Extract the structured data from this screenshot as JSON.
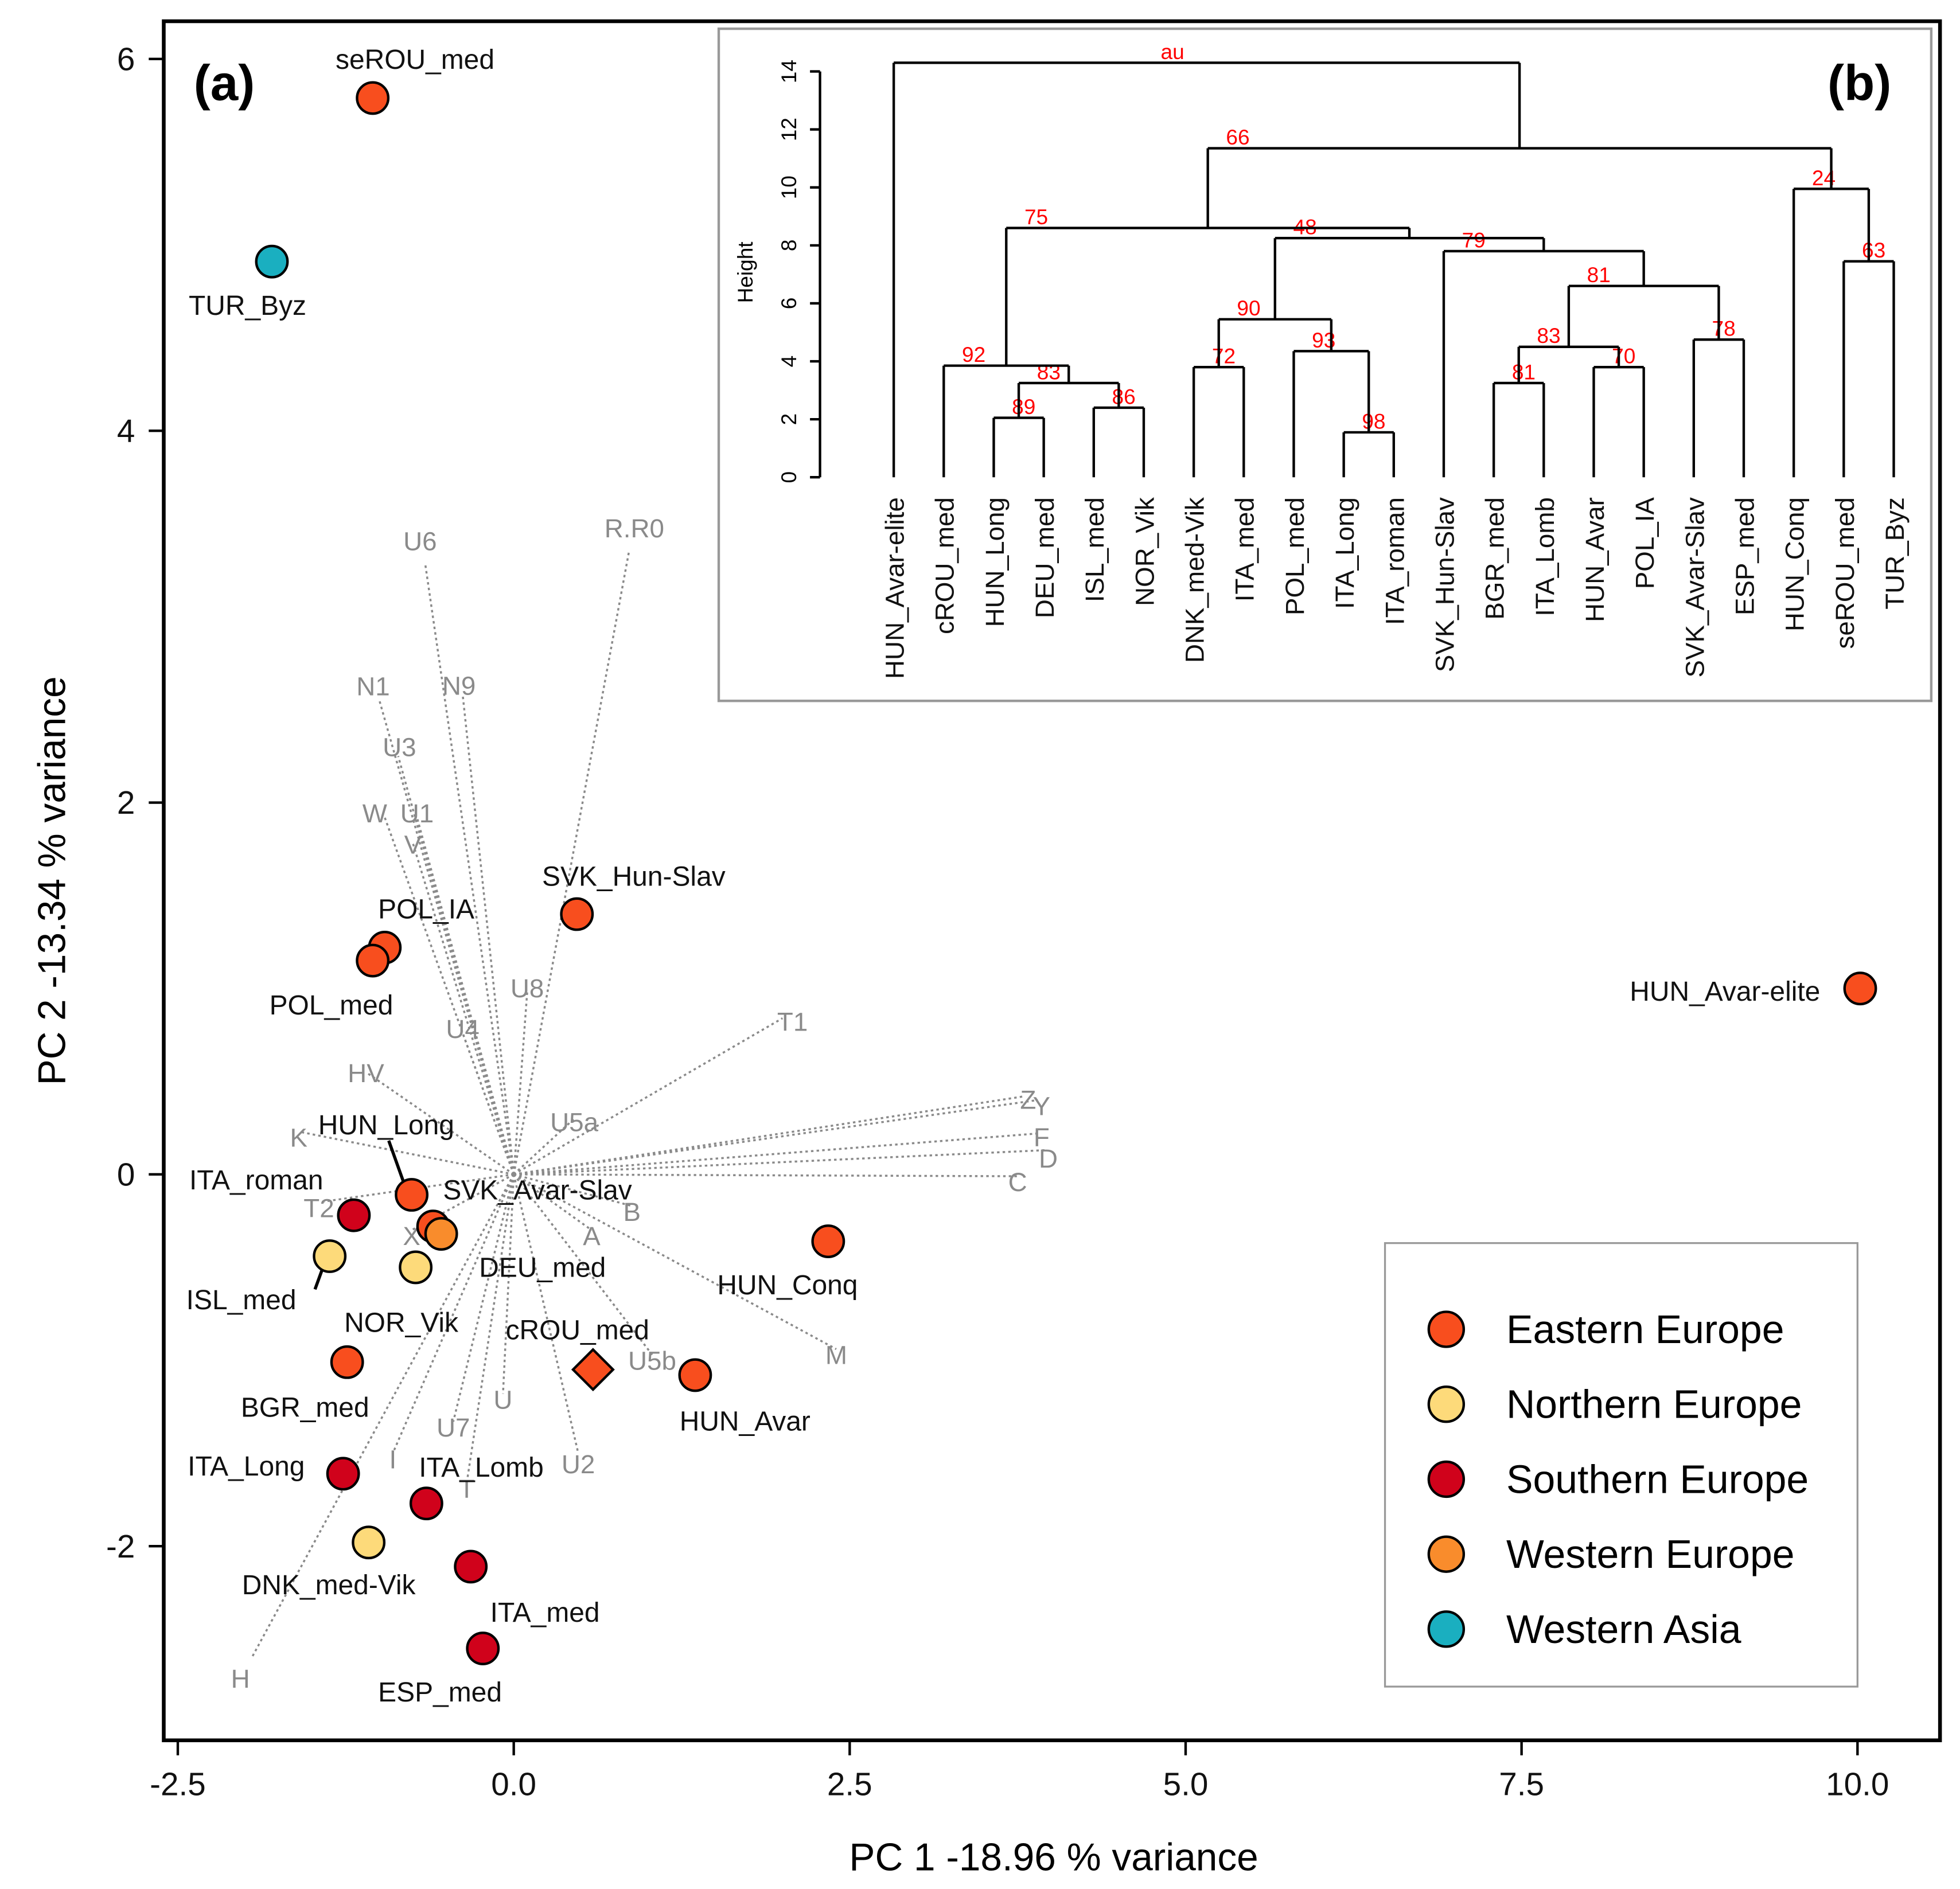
{
  "chart_data": [
    {
      "type": "scatter",
      "panel_label": "(a)",
      "xlabel": "PC 1 -18.96 % variance",
      "ylabel": "PC 2 -13.34 % variance",
      "xlim": [
        -2.6,
        10.6
      ],
      "ylim": [
        -3.05,
        6.25
      ],
      "xticks": [
        "-2.5",
        "0.0",
        "2.5",
        "5.0",
        "7.5",
        "10.0"
      ],
      "yticks": [
        "-2",
        "0",
        "2",
        "4",
        "6"
      ],
      "points": [
        {
          "name": "seROU_med",
          "x": -1.05,
          "y": 5.79,
          "group": "Eastern Europe"
        },
        {
          "name": "TUR_Byz",
          "x": -1.8,
          "y": 4.91,
          "group": "Western Asia"
        },
        {
          "name": "HUN_Avar-elite",
          "x": 10.02,
          "y": 1.0,
          "group": "Eastern Europe"
        },
        {
          "name": "SVK_Hun-Slav",
          "x": 0.47,
          "y": 1.4,
          "group": "Eastern Europe"
        },
        {
          "name": "POL_IA",
          "x": -0.96,
          "y": 1.22,
          "group": "Eastern Europe"
        },
        {
          "name": "POL_med",
          "x": -1.05,
          "y": 1.15,
          "group": "Eastern Europe"
        },
        {
          "name": "HUN_Long",
          "x": -0.76,
          "y": -0.11,
          "group": "Eastern Europe"
        },
        {
          "name": "SVK_Avar-Slav",
          "x": -0.6,
          "y": -0.28,
          "group": "Eastern Europe"
        },
        {
          "name": "DEU_med",
          "x": -0.54,
          "y": -0.32,
          "group": "Western Europe"
        },
        {
          "name": "ITA_roman",
          "x": -1.19,
          "y": -0.22,
          "group": "Southern Europe"
        },
        {
          "name": "ISL_med",
          "x": -1.37,
          "y": -0.44,
          "group": "Northern Europe"
        },
        {
          "name": "NOR_Vik",
          "x": -0.73,
          "y": -0.5,
          "group": "Northern Europe"
        },
        {
          "name": "HUN_Conq",
          "x": 2.34,
          "y": -0.36,
          "group": "Eastern Europe"
        },
        {
          "name": "cROU_med",
          "x": 0.59,
          "y": -1.05,
          "group": "Eastern Europe",
          "shape": "diamond"
        },
        {
          "name": "HUN_Avar",
          "x": 1.35,
          "y": -1.08,
          "group": "Eastern Europe"
        },
        {
          "name": "BGR_med",
          "x": -1.24,
          "y": -1.01,
          "group": "Eastern Europe"
        },
        {
          "name": "ITA_Long",
          "x": -1.27,
          "y": -1.61,
          "group": "Southern Europe"
        },
        {
          "name": "ITA_Lomb",
          "x": -0.65,
          "y": -1.77,
          "group": "Southern Europe"
        },
        {
          "name": "DNK_med-Vik",
          "x": -1.08,
          "y": -1.98,
          "group": "Northern Europe"
        },
        {
          "name": "ITA_med",
          "x": -0.32,
          "y": -2.11,
          "group": "Southern Europe"
        },
        {
          "name": "ESP_med",
          "x": -0.23,
          "y": -2.55,
          "group": "Southern Europe"
        }
      ],
      "loadings": [
        {
          "name": "U6",
          "x": -0.66,
          "y": 3.29
        },
        {
          "name": "R.R0",
          "x": 0.86,
          "y": 3.36
        },
        {
          "name": "N1",
          "x": -1.0,
          "y": 2.55
        },
        {
          "name": "N9",
          "x": -0.38,
          "y": 2.58
        },
        {
          "name": "U3",
          "x": -0.86,
          "y": 2.25
        },
        {
          "name": "W",
          "x": -0.96,
          "y": 1.92
        },
        {
          "name": "U1",
          "x": -0.72,
          "y": 1.92
        },
        {
          "name": "V",
          "x": -0.75,
          "y": 1.78
        },
        {
          "name": "U8",
          "x": 0.1,
          "y": 0.98
        },
        {
          "name": "U4",
          "x": -0.38,
          "y": 0.76
        },
        {
          "name": "HV",
          "x": -1.1,
          "y": 0.55
        },
        {
          "name": "T1",
          "x": 2.0,
          "y": 0.84
        },
        {
          "name": "Z",
          "x": 3.8,
          "y": 0.42
        },
        {
          "name": "Y",
          "x": 3.9,
          "y": 0.4
        },
        {
          "name": "F",
          "x": 3.9,
          "y": 0.22
        },
        {
          "name": "D",
          "x": 3.95,
          "y": 0.13
        },
        {
          "name": "C",
          "x": 3.75,
          "y": -0.01
        },
        {
          "name": "K",
          "x": -1.6,
          "y": 0.23
        },
        {
          "name": "U5a",
          "x": 0.45,
          "y": 0.3
        },
        {
          "name": "T2",
          "x": -1.45,
          "y": -0.15
        },
        {
          "name": "X",
          "x": -0.76,
          "y": -0.3
        },
        {
          "name": "B",
          "x": 0.88,
          "y": -0.17
        },
        {
          "name": "A",
          "x": 0.58,
          "y": -0.3
        },
        {
          "name": "M",
          "x": 2.4,
          "y": -0.94
        },
        {
          "name": "U5b",
          "x": 1.03,
          "y": -0.97
        },
        {
          "name": "U",
          "x": -0.08,
          "y": -1.18
        },
        {
          "name": "U7",
          "x": -0.45,
          "y": -1.33
        },
        {
          "name": "U2",
          "x": 0.48,
          "y": -1.5
        },
        {
          "name": "I",
          "x": -0.9,
          "y": -1.5
        },
        {
          "name": "T",
          "x": -0.35,
          "y": -1.66
        },
        {
          "name": "H",
          "x": -1.95,
          "y": -2.6
        }
      ],
      "legend": {
        "placement": "bottom-right",
        "entries": [
          {
            "label": "Eastern Europe",
            "color": "#F84E1E"
          },
          {
            "label": "Northern Europe",
            "color": "#FDDA7A"
          },
          {
            "label": "Southern Europe",
            "color": "#D0021B"
          },
          {
            "label": "Western Europe",
            "color": "#F98C2C"
          },
          {
            "label": "Western Asia",
            "color": "#1AAFC0"
          }
        ]
      }
    },
    {
      "type": "dendrogram",
      "panel_label": "(b)",
      "ylabel": "Height",
      "ylim": [
        0,
        14
      ],
      "yticks": [
        "0",
        "2",
        "4",
        "6",
        "8",
        "10",
        "12",
        "14"
      ],
      "highlight_leaf": "cROU_med",
      "highlight_color": "#F84E1E",
      "au_color": "#FF0000",
      "tree": {
        "h": 14.3,
        "au": "au",
        "c": [
          {
            "leaf": "HUN_Avar-elite"
          },
          {
            "h": 11.35,
            "au": "66",
            "c": [
              {
                "h": 8.6,
                "au": "75",
                "c": [
                  {
                    "h": 3.85,
                    "au": "92",
                    "c": [
                      {
                        "leaf": "cROU_med"
                      },
                      {
                        "h": 3.25,
                        "au": "83",
                        "c": [
                          {
                            "h": 2.05,
                            "au": "89",
                            "c": [
                              {
                                "leaf": "HUN_Long"
                              },
                              {
                                "leaf": "DEU_med"
                              }
                            ]
                          },
                          {
                            "h": 2.4,
                            "au": "86",
                            "c": [
                              {
                                "leaf": "ISL_med"
                              },
                              {
                                "leaf": "NOR_Vik"
                              }
                            ]
                          }
                        ]
                      }
                    ]
                  },
                  {
                    "h": 8.25,
                    "au": "48",
                    "c": [
                      {
                        "h": 5.45,
                        "au": "90",
                        "c": [
                          {
                            "h": 3.8,
                            "au": "72",
                            "c": [
                              {
                                "leaf": "DNK_med-Vik"
                              },
                              {
                                "leaf": "ITA_med"
                              }
                            ]
                          },
                          {
                            "h": 4.35,
                            "au": "93",
                            "c": [
                              {
                                "leaf": "POL_med"
                              },
                              {
                                "h": 1.55,
                                "au": "98",
                                "c": [
                                  {
                                    "leaf": "ITA_Long"
                                  },
                                  {
                                    "leaf": "ITA_roman"
                                  }
                                ]
                              }
                            ]
                          }
                        ]
                      },
                      {
                        "h": 7.8,
                        "au": "79",
                        "c": [
                          {
                            "leaf": "SVK_Hun-Slav"
                          },
                          {
                            "h": 6.6,
                            "au": "81",
                            "c": [
                              {
                                "h": 4.5,
                                "au": "83",
                                "c": [
                                  {
                                    "h": 3.25,
                                    "au": "81",
                                    "c": [
                                      {
                                        "leaf": "BGR_med"
                                      },
                                      {
                                        "leaf": "ITA_Lomb"
                                      }
                                    ]
                                  },
                                  {
                                    "h": 3.8,
                                    "au": "70",
                                    "c": [
                                      {
                                        "leaf": "HUN_Avar"
                                      },
                                      {
                                        "leaf": "POL_IA"
                                      }
                                    ]
                                  }
                                ]
                              },
                              {
                                "h": 4.75,
                                "au": "78",
                                "c": [
                                  {
                                    "leaf": "SVK_Avar-Slav"
                                  },
                                  {
                                    "leaf": "ESP_med"
                                  }
                                ]
                              }
                            ]
                          }
                        ]
                      }
                    ]
                  }
                ]
              },
              {
                "h": 9.95,
                "au": "24",
                "c": [
                  {
                    "leaf": "HUN_Conq"
                  },
                  {
                    "h": 7.45,
                    "au": "63",
                    "c": [
                      {
                        "leaf": "seROU_med"
                      },
                      {
                        "leaf": "TUR_Byz"
                      }
                    ]
                  }
                ]
              }
            ]
          }
        ]
      }
    }
  ]
}
